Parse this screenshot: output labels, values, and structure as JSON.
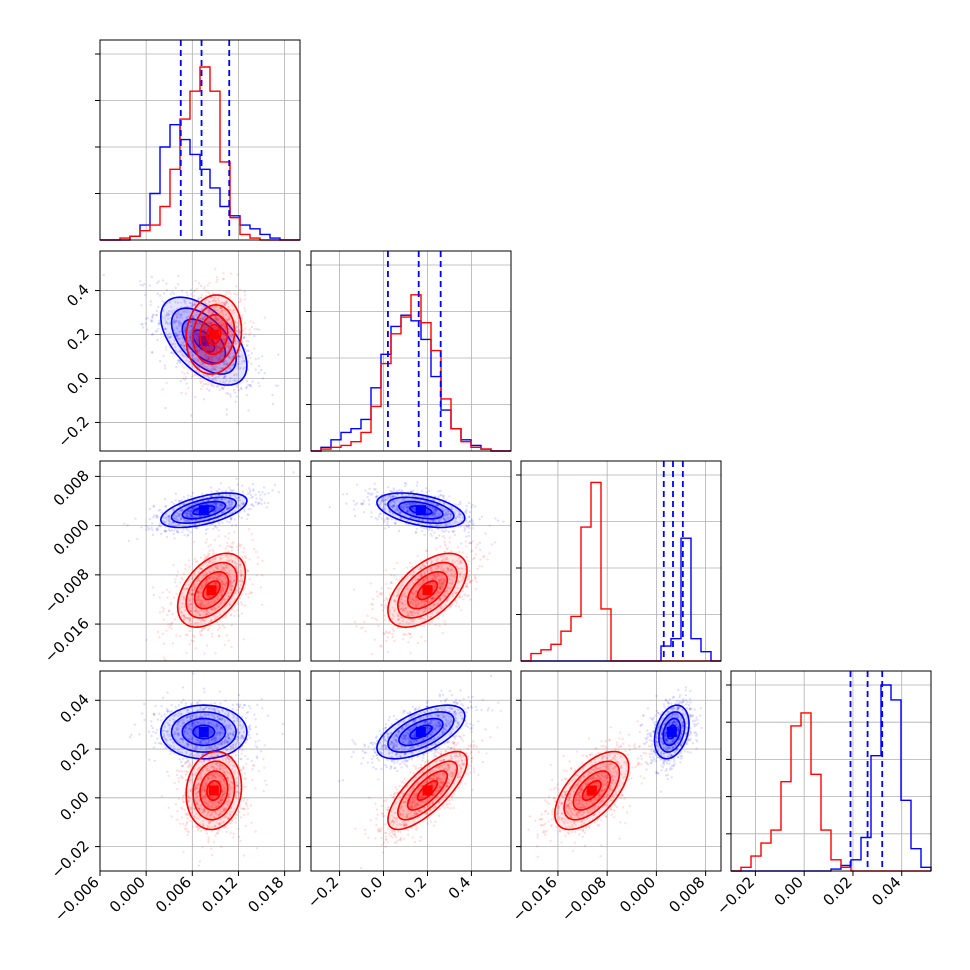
{
  "chart_data": {
    "type": "corner",
    "grid": true,
    "series": [
      {
        "key": "blue",
        "color": "#0000ff"
      },
      {
        "key": "red",
        "color": "#ff0000"
      }
    ],
    "parameters": [
      {
        "index": 0,
        "range": [
          -0.006,
          0.02
        ],
        "ticks": [
          -0.006,
          0.0,
          0.006,
          0.012,
          0.018
        ],
        "tick_labels": [
          "−0.006",
          "0.000",
          "0.006",
          "0.012",
          "0.018"
        ]
      },
      {
        "index": 1,
        "range": [
          -0.33,
          0.58
        ],
        "ticks": [
          -0.2,
          0.0,
          0.2,
          0.4
        ],
        "tick_labels": [
          "−0.2",
          "0.0",
          "0.2",
          "0.4"
        ]
      },
      {
        "index": 2,
        "range": [
          -0.022,
          0.0105
        ],
        "ticks": [
          -0.016,
          -0.008,
          0.0,
          0.008
        ],
        "tick_labels": [
          "−0.016",
          "−0.008",
          "0.000",
          "0.008"
        ]
      },
      {
        "index": 3,
        "range": [
          -0.03,
          0.052
        ],
        "ticks": [
          -0.02,
          0.0,
          0.02,
          0.04
        ],
        "tick_labels": [
          "−0.02",
          "0.00",
          "0.02",
          "0.04"
        ]
      }
    ],
    "diagonal_ticks": [
      [
        0.25,
        0.5,
        0.75,
        1.0
      ],
      [
        0.25,
        0.5,
        0.75,
        1.0
      ],
      [
        0.25,
        0.5,
        0.75,
        1.0
      ],
      [
        0.2,
        0.4,
        0.6,
        0.8,
        1.0
      ]
    ],
    "quantiles_blue": [
      [
        0.0045,
        0.0072,
        0.0108
      ],
      [
        0.02,
        0.16,
        0.26
      ],
      [
        0.0012,
        0.0027,
        0.0043
      ],
      [
        0.019,
        0.026,
        0.032
      ]
    ],
    "histograms": [
      {
        "param": 0,
        "blue": {
          "values": [
            0.0,
            0.0,
            0.0,
            0.02,
            0.08,
            0.25,
            0.5,
            0.62,
            0.54,
            0.46,
            0.38,
            0.28,
            0.18,
            0.13,
            0.08,
            0.06,
            0.03,
            0.01,
            0.0,
            0.0
          ]
        },
        "red": {
          "values": [
            0.0,
            0.0,
            0.01,
            0.02,
            0.05,
            0.08,
            0.18,
            0.38,
            0.65,
            0.8,
            0.93,
            0.8,
            0.42,
            0.12,
            0.03,
            0.01,
            0.0,
            0.0,
            0.0,
            0.0
          ]
        }
      },
      {
        "param": 1,
        "blue": {
          "values": [
            0.0,
            0.02,
            0.06,
            0.1,
            0.12,
            0.17,
            0.34,
            0.52,
            0.67,
            0.73,
            0.7,
            0.6,
            0.4,
            0.22,
            0.12,
            0.06,
            0.03,
            0.01,
            0.0,
            0.0
          ]
        },
        "red": {
          "values": [
            0.0,
            0.01,
            0.02,
            0.03,
            0.05,
            0.1,
            0.24,
            0.47,
            0.63,
            0.72,
            0.84,
            0.69,
            0.54,
            0.28,
            0.12,
            0.05,
            0.02,
            0.01,
            0.0,
            0.0
          ]
        }
      },
      {
        "param": 2,
        "blue": {
          "values": [
            0.0,
            0.0,
            0.0,
            0.0,
            0.0,
            0.0,
            0.0,
            0.0,
            0.0,
            0.0,
            0.0,
            0.0,
            0.0,
            0.0,
            0.08,
            0.12,
            0.66,
            0.12,
            0.05,
            0.0
          ]
        },
        "red": {
          "values": [
            0.0,
            0.04,
            0.06,
            0.09,
            0.16,
            0.24,
            0.72,
            0.96,
            0.28,
            0.0,
            0.0,
            0.0,
            0.0,
            0.0,
            0.0,
            0.0,
            0.0,
            0.0,
            0.0,
            0.0
          ]
        }
      },
      {
        "param": 3,
        "blue": {
          "values": [
            0.0,
            0.0,
            0.0,
            0.0,
            0.0,
            0.0,
            0.0,
            0.0,
            0.0,
            0.0,
            0.01,
            0.03,
            0.06,
            0.18,
            0.62,
            1.0,
            0.92,
            0.38,
            0.12,
            0.02
          ]
        },
        "red": {
          "values": [
            0.0,
            0.02,
            0.08,
            0.15,
            0.22,
            0.48,
            0.78,
            0.85,
            0.52,
            0.22,
            0.06,
            0.02,
            0.0,
            0.0,
            0.0,
            0.0,
            0.0,
            0.0,
            0.0,
            0.0
          ]
        }
      }
    ],
    "pairs": [
      {
        "x_param": 0,
        "y_param": 1,
        "blue": {
          "mean": [
            0.0075,
            0.17
          ],
          "sd": [
            0.0028,
            0.1
          ],
          "corr": -0.55
        },
        "red": {
          "mean": [
            0.0088,
            0.2
          ],
          "sd": [
            0.0018,
            0.09
          ],
          "corr": 0.1
        }
      },
      {
        "x_param": 0,
        "y_param": 2,
        "blue": {
          "mean": [
            0.0075,
            0.0025
          ],
          "sd": [
            0.0028,
            0.0014
          ],
          "corr": 0.55
        },
        "red": {
          "mean": [
            0.0085,
            -0.0105
          ],
          "sd": [
            0.0022,
            0.003
          ],
          "corr": 0.45
        }
      },
      {
        "x_param": 1,
        "y_param": 2,
        "blue": {
          "mean": [
            0.17,
            0.0025
          ],
          "sd": [
            0.1,
            0.0014
          ],
          "corr": -0.45
        },
        "red": {
          "mean": [
            0.2,
            -0.0105
          ],
          "sd": [
            0.09,
            0.003
          ],
          "corr": 0.55
        }
      },
      {
        "x_param": 0,
        "y_param": 3,
        "blue": {
          "mean": [
            0.0075,
            0.027
          ],
          "sd": [
            0.0028,
            0.0055
          ],
          "corr": 0.0
        },
        "red": {
          "mean": [
            0.0088,
            0.003
          ],
          "sd": [
            0.0018,
            0.008
          ],
          "corr": 0.1
        }
      },
      {
        "x_param": 1,
        "y_param": 3,
        "blue": {
          "mean": [
            0.17,
            0.027
          ],
          "sd": [
            0.1,
            0.0055
          ],
          "corr": 0.6
        },
        "red": {
          "mean": [
            0.2,
            0.003
          ],
          "sd": [
            0.09,
            0.008
          ],
          "corr": 0.75
        }
      },
      {
        "x_param": 2,
        "y_param": 3,
        "blue": {
          "mean": [
            0.0025,
            0.027
          ],
          "sd": [
            0.0014,
            0.0055
          ],
          "corr": 0.3
        },
        "red": {
          "mean": [
            -0.0105,
            0.003
          ],
          "sd": [
            0.003,
            0.008
          ],
          "corr": 0.6
        }
      }
    ],
    "contour_levels_sd": [
      0.5,
      1.0,
      1.5,
      2.0
    ]
  }
}
